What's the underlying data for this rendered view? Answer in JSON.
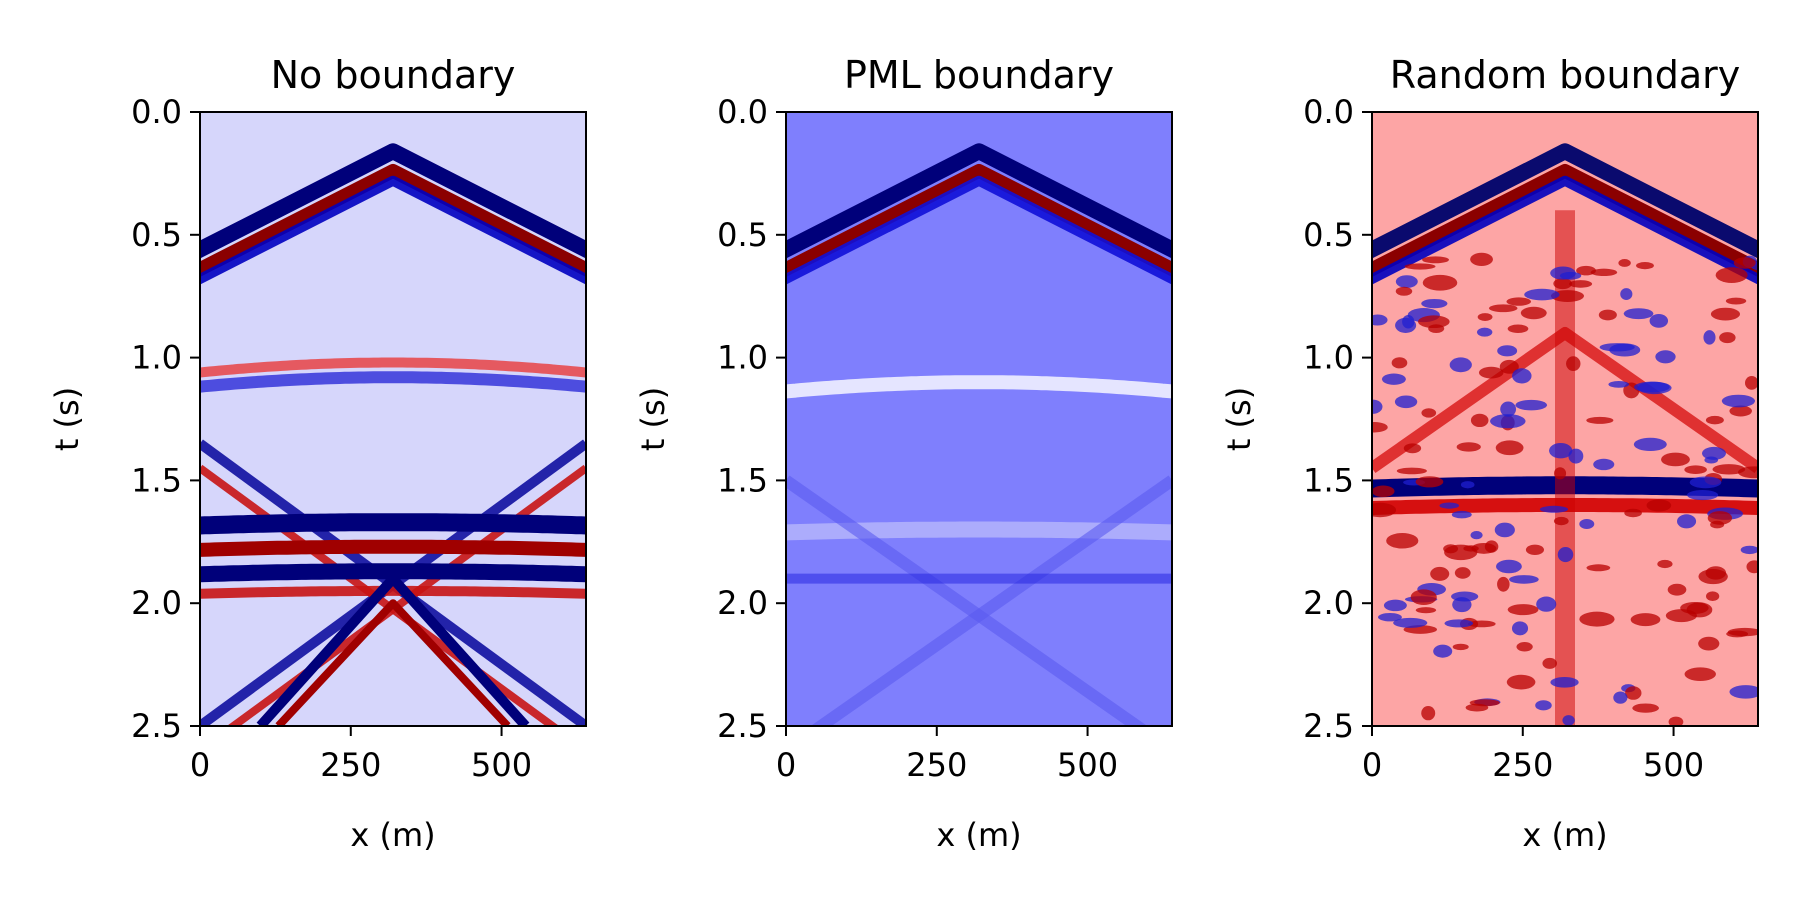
{
  "chart_data": [
    {
      "type": "heatmap",
      "title": "No boundary",
      "xlabel": "x (m)",
      "ylabel": "t (s)",
      "xlim": [
        0,
        640
      ],
      "ylim": [
        2.5,
        0.0
      ],
      "xticks": [
        0,
        250,
        500
      ],
      "xtick_labels": [
        "0",
        "250",
        "500"
      ],
      "yticks": [
        0.0,
        0.5,
        1.0,
        1.5,
        2.0,
        2.5
      ],
      "ytick_labels": [
        "0.0",
        "0.5",
        "1.0",
        "1.5",
        "2.0",
        "2.5"
      ],
      "colormap": "seismic",
      "background": "#d6d6fb",
      "source_x": 320,
      "direct_wave_apex_t": 0.2,
      "direct_wave_velocity": 800,
      "events": [
        "direct wave",
        "side-boundary reflections",
        "bottom-boundary reflections"
      ]
    },
    {
      "type": "heatmap",
      "title": "PML boundary",
      "xlabel": "x (m)",
      "ylabel": "t (s)",
      "xlim": [
        0,
        640
      ],
      "ylim": [
        2.5,
        0.0
      ],
      "xticks": [
        0,
        250,
        500
      ],
      "xtick_labels": [
        "0",
        "250",
        "500"
      ],
      "yticks": [
        0.0,
        0.5,
        1.0,
        1.5,
        2.0,
        2.5
      ],
      "ytick_labels": [
        "0.0",
        "0.5",
        "1.0",
        "1.5",
        "2.0",
        "2.5"
      ],
      "colormap": "seismic",
      "background": "#7f7ffd",
      "source_x": 320,
      "direct_wave_apex_t": 0.2,
      "direct_wave_velocity": 800,
      "events": [
        "direct wave",
        "weak residual reflections"
      ]
    },
    {
      "type": "heatmap",
      "title": "Random boundary",
      "xlabel": "x (m)",
      "ylabel": "t (s)",
      "xlim": [
        0,
        640
      ],
      "ylim": [
        2.5,
        0.0
      ],
      "xticks": [
        0,
        250,
        500
      ],
      "xtick_labels": [
        "0",
        "250",
        "500"
      ],
      "yticks": [
        0.0,
        0.5,
        1.0,
        1.5,
        2.0,
        2.5
      ],
      "ytick_labels": [
        "0.0",
        "0.5",
        "1.0",
        "1.5",
        "2.0",
        "2.5"
      ],
      "colormap": "seismic",
      "background": "#fda5a5",
      "source_x": 320,
      "direct_wave_apex_t": 0.2,
      "direct_wave_velocity": 800,
      "events": [
        "direct wave",
        "scattered random-boundary reflections"
      ]
    }
  ]
}
